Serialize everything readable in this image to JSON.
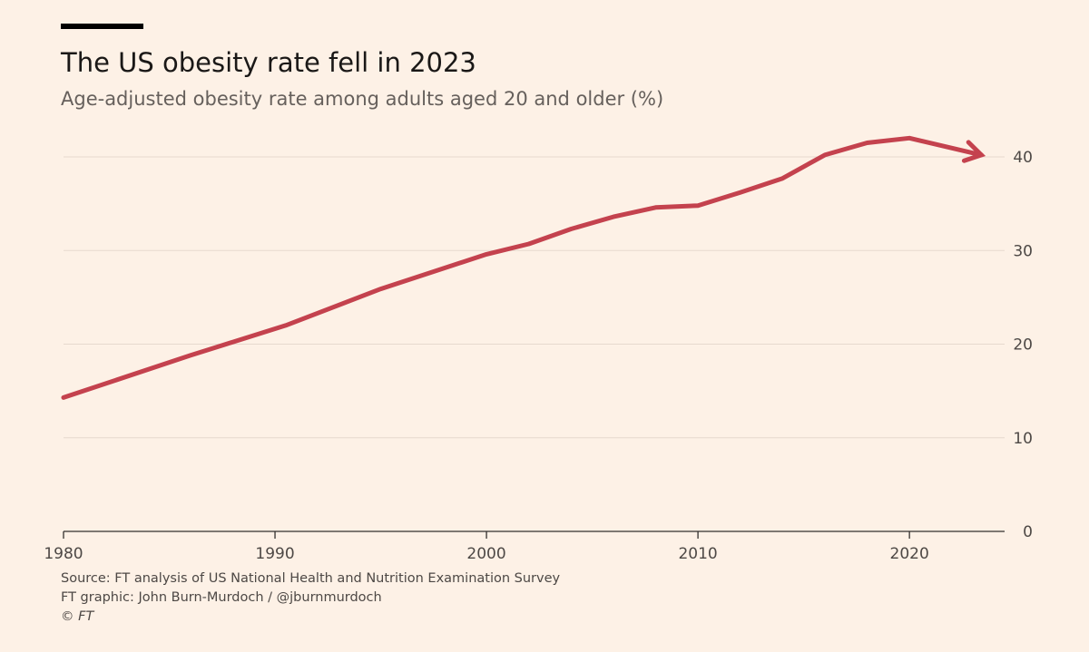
{
  "header": {
    "title": "The US obesity rate fell in 2023",
    "subtitle": "Age-adjusted obesity rate among adults aged 20 and older (%)"
  },
  "footer": {
    "source": "Source: FT analysis of US National Health and Nutrition Examination Survey",
    "credit": "FT graphic: John Burn-Murdoch / @jburnmurdoch",
    "copyright": "© FT"
  },
  "colors": {
    "background": "#FDF1E6",
    "line": "#C4424E",
    "grid": "#E6D9CE",
    "axis": "#33302E"
  },
  "chart_data": {
    "type": "line",
    "title": "The US obesity rate fell in 2023",
    "subtitle": "Age-adjusted obesity rate among adults aged 20 and older (%)",
    "xlabel": "",
    "ylabel": "",
    "xlim": [
      1980,
      2024.5
    ],
    "ylim": [
      0,
      40
    ],
    "xticks": [
      1980,
      1990,
      2000,
      2010,
      2020
    ],
    "yticks": [
      0,
      10,
      20,
      30,
      40
    ],
    "y_axis_side": "right",
    "grid": true,
    "legend": "none",
    "series": [
      {
        "x": [
          1980,
          1986,
          1990.5,
          1995,
          2000,
          2002,
          2004,
          2006,
          2008,
          2010,
          2012,
          2014,
          2016,
          2018,
          2020,
          2023.4
        ],
        "y": [
          14.3,
          18.8,
          22.0,
          25.9,
          29.6,
          30.7,
          32.3,
          33.6,
          34.6,
          34.8,
          36.2,
          37.7,
          40.2,
          41.5,
          42.0,
          40.2
        ],
        "arrow_end": true
      }
    ]
  }
}
